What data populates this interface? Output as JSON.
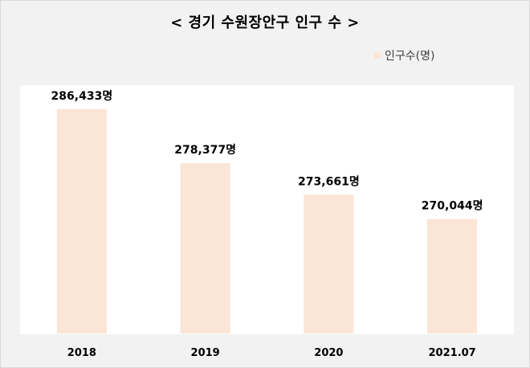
{
  "chart_data": {
    "type": "bar",
    "title": "< 경기 수원장안구 인구 수 >",
    "categories": [
      "2018",
      "2019",
      "2020",
      "2021.07"
    ],
    "series": [
      {
        "name": "인구수(명)",
        "values": [
          286433,
          278377,
          273661,
          270044
        ]
      }
    ],
    "data_labels": [
      "286,433명",
      "278,377명",
      "273,661명",
      "270,044명"
    ],
    "ylim": [
      253000,
      290000
    ],
    "grid": false,
    "legend_position": "top-right",
    "colors": {
      "bar": "#fbe5d6",
      "background": "#f2f2f2",
      "plot_background": "#ffffff"
    }
  }
}
